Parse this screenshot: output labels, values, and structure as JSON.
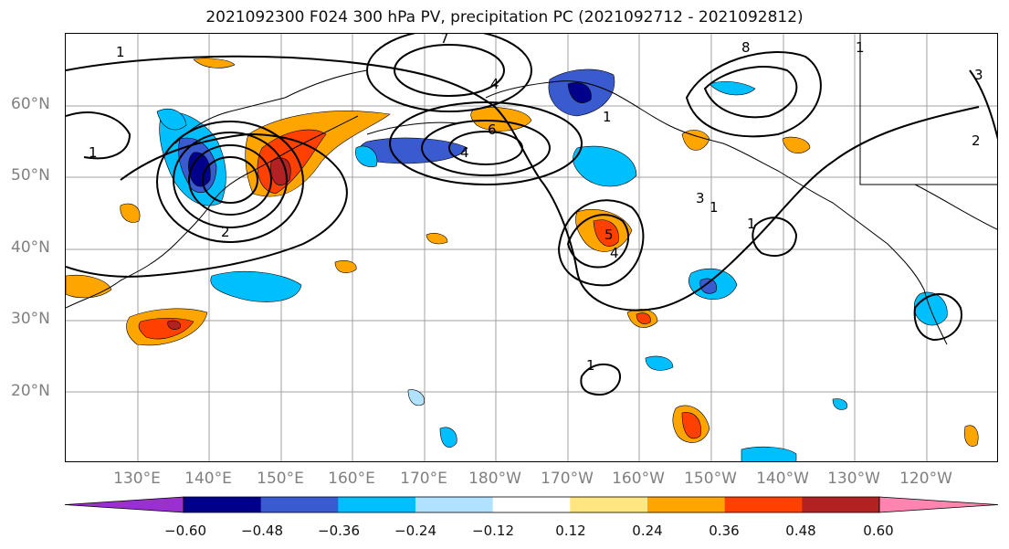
{
  "title": "2021092300 F024 300 hPa PV, precipitation PC (2021092712 - 2021092812)",
  "lat_labels": [
    "60°N",
    "50°N",
    "40°N",
    "30°N",
    "20°N"
  ],
  "lon_labels": [
    "130°E",
    "140°E",
    "150°E",
    "160°E",
    "170°E",
    "180°W",
    "170°W",
    "160°W",
    "150°W",
    "140°W",
    "130°W",
    "120°W"
  ],
  "colorbar": {
    "ticks": [
      "−0.60",
      "−0.48",
      "−0.36",
      "−0.24",
      "−0.12",
      "0.12",
      "0.24",
      "0.36",
      "0.48",
      "0.60"
    ],
    "colors": [
      "#9b30d0",
      "#00008b",
      "#3a5bd0",
      "#00bfff",
      "#b0e2ff",
      "#ffffff",
      "#ffe680",
      "#ffa500",
      "#ff4000",
      "#b22222",
      "#ff85b0"
    ]
  },
  "contour_labels": [
    "1",
    "2",
    "3",
    "4",
    "5",
    "6",
    "7",
    "8"
  ]
}
